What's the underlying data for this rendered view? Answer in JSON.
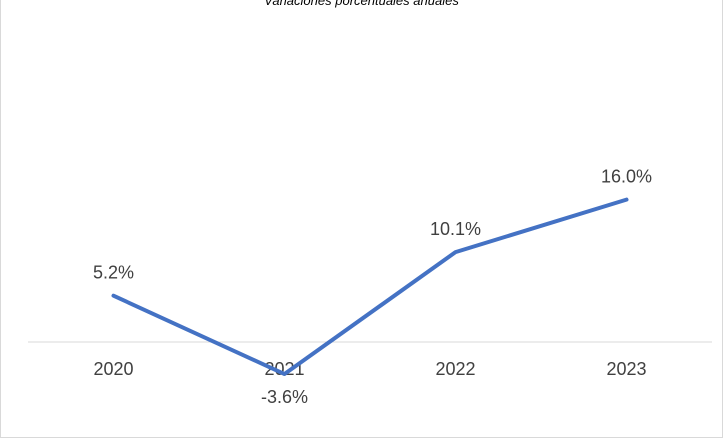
{
  "chart_data": {
    "type": "line",
    "title": "",
    "subtitle": "Variaciones porcentuales anuales",
    "xlabel": "",
    "ylabel": "",
    "categories": [
      "2020",
      "2021",
      "2022",
      "2023"
    ],
    "series": [
      {
        "values": [
          5.2,
          -3.6,
          10.1,
          16.0
        ],
        "data_labels": [
          "5.2%",
          "-3.6%",
          "10.1%",
          "16.0%"
        ],
        "color": "#4472C4"
      }
    ],
    "ylim": [
      -4,
      17
    ],
    "grid": false,
    "legend": "none",
    "axis_color": "#d9d9d9"
  }
}
